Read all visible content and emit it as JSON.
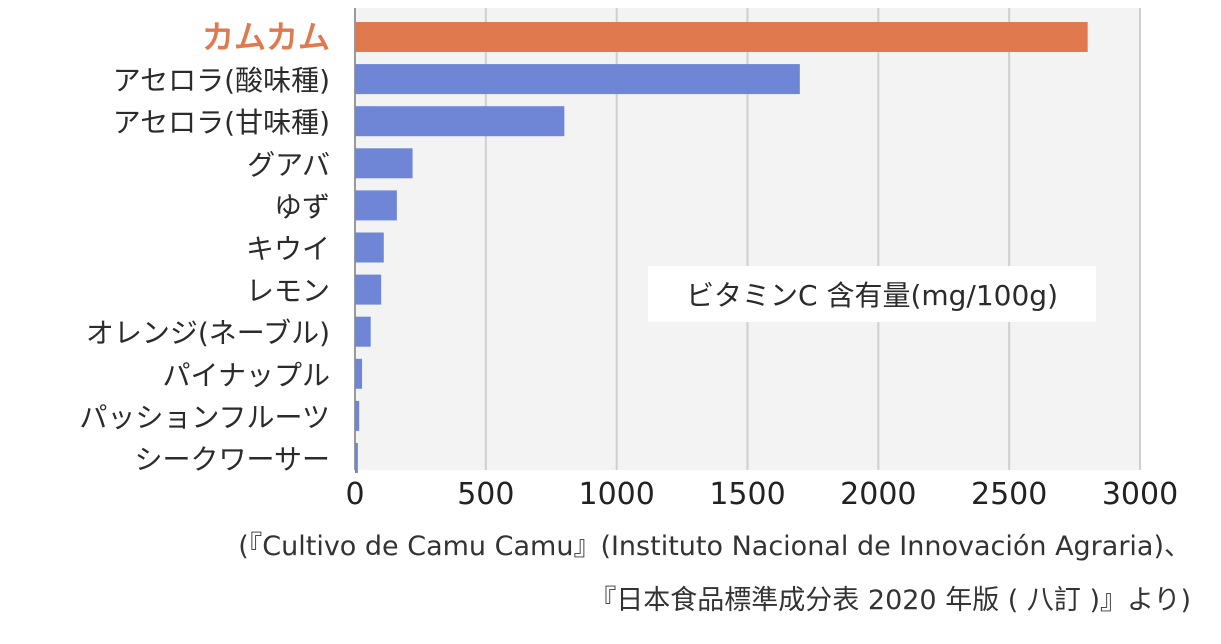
{
  "chart_data": {
    "type": "bar",
    "orientation": "horizontal",
    "categories": [
      "カムカム",
      "アセロラ(酸味種)",
      "アセロラ(甘味種)",
      "グアバ",
      "ゆず",
      "キウイ",
      "レモン",
      "オレンジ(ネーブル)",
      "パイナップル",
      "パッションフルーツ",
      "シークワーサー"
    ],
    "values": [
      2800,
      1700,
      800,
      220,
      160,
      110,
      100,
      60,
      27,
      16,
      11
    ],
    "highlight_index": 0,
    "colors": {
      "highlight": "#e07a4e",
      "bar": "#6f86d6",
      "grid": "#cfcfcf",
      "plot_bg": "#f3f3f3",
      "highlight_label": "#e07a4e"
    },
    "xlim": [
      0,
      3000
    ],
    "xticks": [
      "0",
      "500",
      "1000",
      "1500",
      "2000",
      "2500",
      "3000"
    ],
    "grid": true,
    "legend_text": "ビタミンC 含有量(mg/100g)"
  },
  "source": {
    "line1": "(『Cultivo de Camu Camu』(Instituto Nacional de Innovación Agraria)、",
    "line2": "『日本食品標準成分表 2020 年版 ( 八訂 )』より)"
  }
}
